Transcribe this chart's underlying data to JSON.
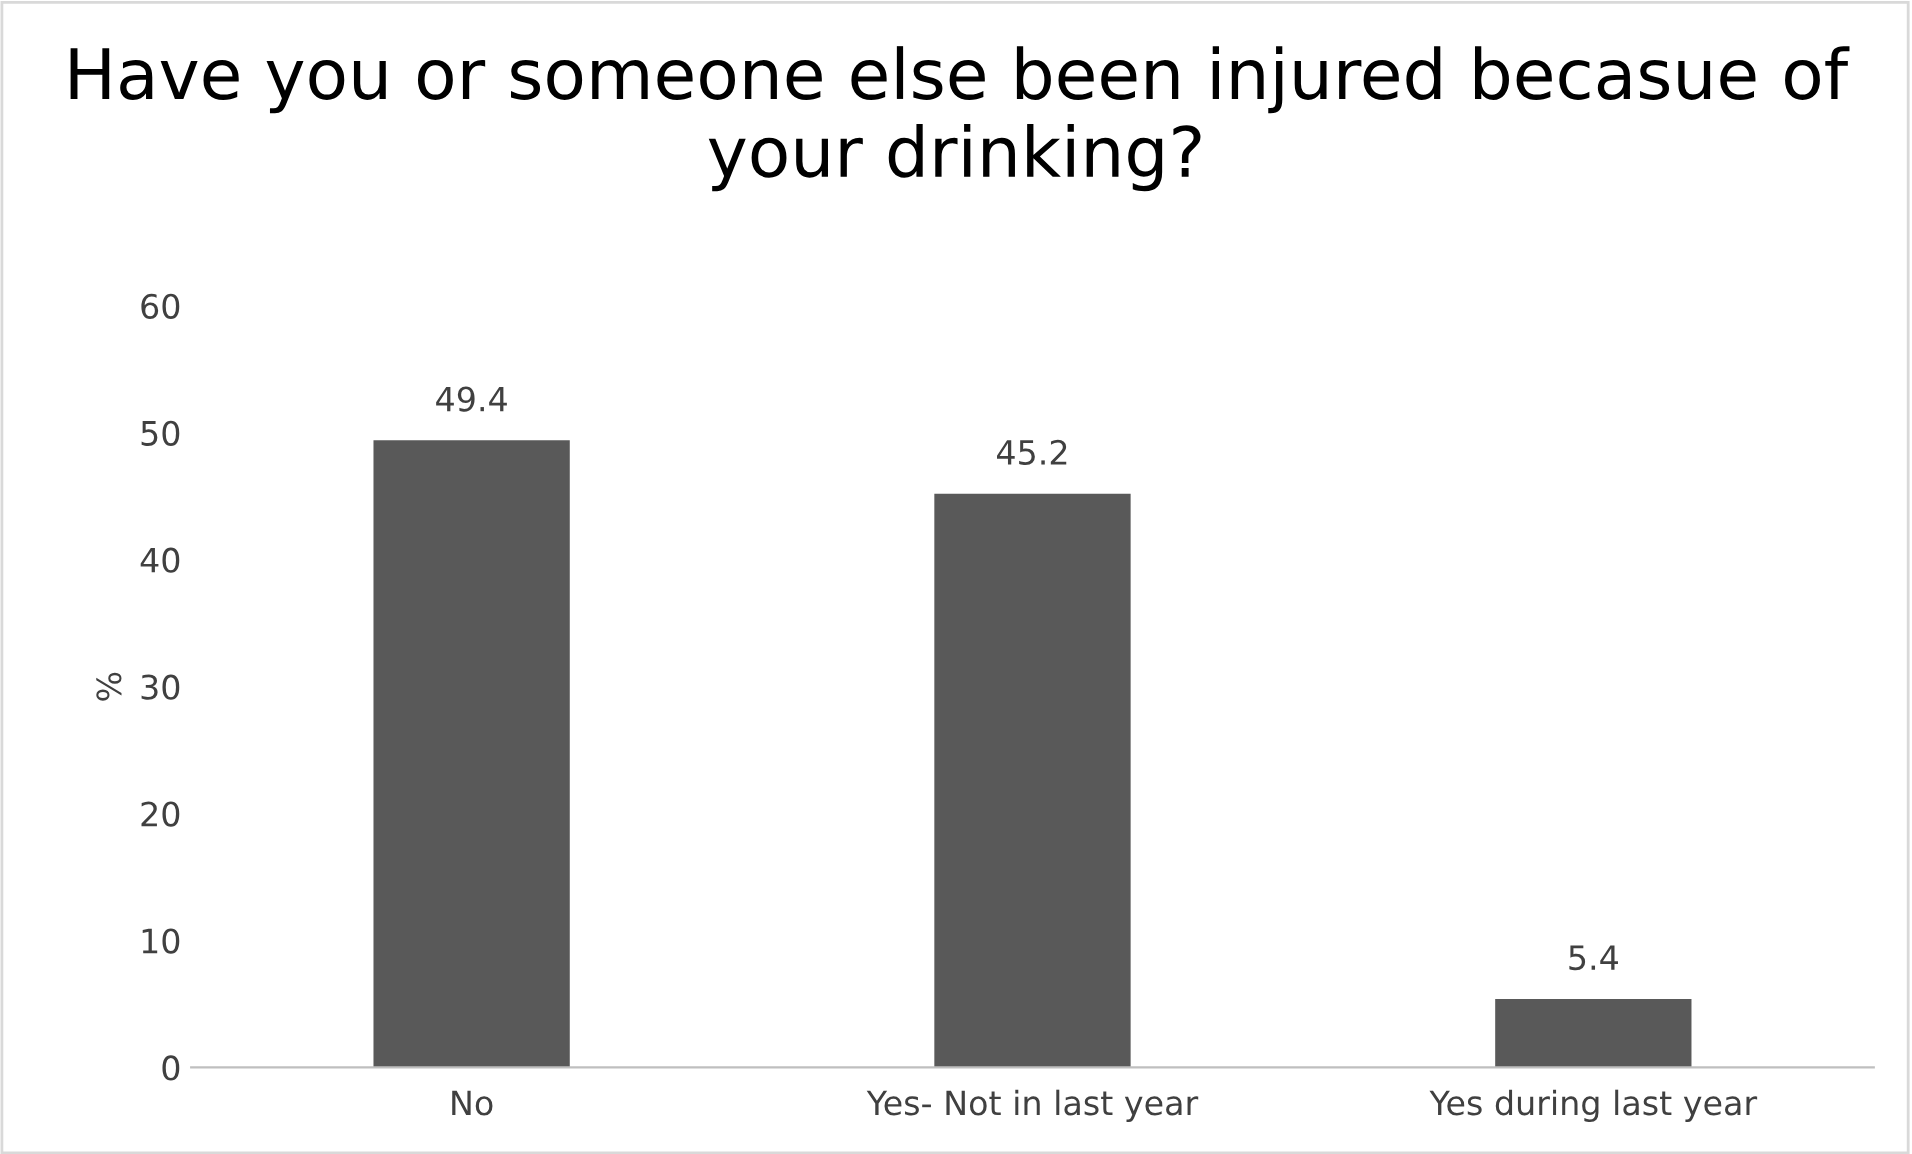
{
  "chart_data": {
    "type": "bar",
    "title": "Have you or someone else been injured becasue of your drinking?",
    "ylabel": "%",
    "categories": [
      "No",
      "Yes- Not in last year",
      "Yes during last year"
    ],
    "values": [
      49.4,
      45.2,
      5.4
    ],
    "color": "#595959",
    "ylim": [
      0,
      60
    ],
    "yticks": [
      0,
      10,
      20,
      30,
      40,
      50,
      60
    ],
    "grid": false,
    "data_labels": true
  }
}
